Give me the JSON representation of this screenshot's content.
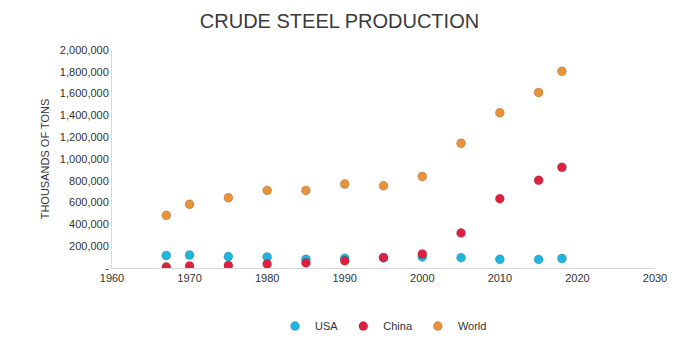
{
  "chart_data": {
    "type": "scatter",
    "title": "CRUDE STEEL PRODUCTION",
    "y_label": "THOUSANDS OF TONS",
    "x": [
      1967,
      1970,
      1975,
      1980,
      1985,
      1990,
      1995,
      2000,
      2005,
      2010,
      2015,
      2018
    ],
    "series": [
      {
        "name": "USA",
        "color": "#1fb5e0",
        "marker": "circle",
        "values": [
          115000,
          119000,
          105000,
          101000,
          80000,
          90000,
          95000,
          102000,
          95000,
          80000,
          79000,
          87000
        ]
      },
      {
        "name": "China",
        "color": "#e0203f",
        "marker": "circle",
        "values": [
          10000,
          18000,
          24000,
          37000,
          47000,
          66000,
          95000,
          128000,
          322000,
          636000,
          805000,
          924000
        ]
      },
      {
        "name": "World",
        "color": "#e8923a",
        "marker": "circle",
        "values": [
          483000,
          585000,
          644000,
          712000,
          712000,
          771000,
          754000,
          839000,
          1144000,
          1424000,
          1610000,
          1805000
        ]
      }
    ],
    "xlim": [
      1960,
      2030
    ],
    "xticks": [
      1960,
      1970,
      1980,
      1990,
      2000,
      2010,
      2020,
      2030
    ],
    "ylim": [
      0,
      2000000
    ],
    "yticks": [
      {
        "value": 0,
        "label": "-"
      },
      {
        "value": 200000,
        "label": "200,000"
      },
      {
        "value": 400000,
        "label": "400,000"
      },
      {
        "value": 600000,
        "label": "600,000"
      },
      {
        "value": 800000,
        "label": "800,000"
      },
      {
        "value": 1000000,
        "label": "1,000,000"
      },
      {
        "value": 1200000,
        "label": "1,200,000"
      },
      {
        "value": 1400000,
        "label": "1,400,000"
      },
      {
        "value": 1600000,
        "label": "1,600,000"
      },
      {
        "value": 1800000,
        "label": "1,800,000"
      },
      {
        "value": 2000000,
        "label": "2,000,000"
      }
    ],
    "grid": false,
    "legend": "bottom"
  }
}
